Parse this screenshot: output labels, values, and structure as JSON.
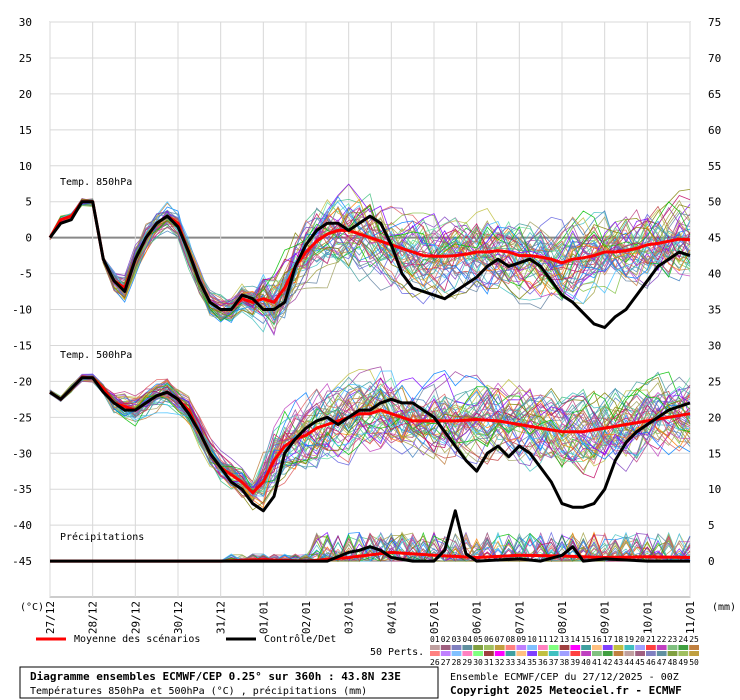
{
  "chart_data": {
    "type": "line",
    "left_axis": {
      "unit_label": "(°C)",
      "ticks": [
        30,
        25,
        20,
        15,
        10,
        5,
        0,
        -5,
        -10,
        -15,
        -20,
        -25,
        -30,
        -35,
        -40,
        -45
      ],
      "ylim": [
        -50,
        30
      ]
    },
    "right_axis": {
      "unit_label": "(mm)",
      "ticks": [
        75,
        70,
        65,
        60,
        55,
        50,
        45,
        40,
        35,
        30,
        25,
        20,
        15,
        10,
        5,
        0
      ]
    },
    "x_labels": [
      "27/12",
      "28/12",
      "29/12",
      "30/12",
      "31/12",
      "01/01",
      "02/01",
      "03/01",
      "04/01",
      "05/01",
      "06/01",
      "07/01",
      "08/01",
      "09/01",
      "10/01",
      "11/01"
    ],
    "panel_labels": {
      "t850": "Temp. 850hPa",
      "t500": "Temp. 500hPa",
      "precip": "Précipitations"
    },
    "series": [
      {
        "name": "Moyenne des scénarios",
        "color": "#ff0000",
        "t850": [
          [
            0,
            0
          ],
          [
            0.25,
            2.5
          ],
          [
            0.5,
            3
          ],
          [
            0.75,
            5
          ],
          [
            1,
            5
          ],
          [
            1.25,
            -3
          ],
          [
            1.5,
            -6
          ],
          [
            1.75,
            -7
          ],
          [
            2,
            -3
          ],
          [
            2.25,
            0
          ],
          [
            2.5,
            2
          ],
          [
            2.75,
            3
          ],
          [
            3,
            2
          ],
          [
            3.25,
            -2
          ],
          [
            3.5,
            -6
          ],
          [
            3.75,
            -9
          ],
          [
            4,
            -10
          ],
          [
            4.25,
            -10
          ],
          [
            4.5,
            -8.5
          ],
          [
            4.75,
            -9
          ],
          [
            5,
            -8.5
          ],
          [
            5.25,
            -9
          ],
          [
            5.5,
            -7
          ],
          [
            5.75,
            -4
          ],
          [
            6,
            -2
          ],
          [
            6.25,
            -0.5
          ],
          [
            6.5,
            0.5
          ],
          [
            6.75,
            1
          ],
          [
            7,
            1
          ],
          [
            7.25,
            0.5
          ],
          [
            7.5,
            0
          ],
          [
            7.75,
            -0.5
          ],
          [
            8,
            -1
          ],
          [
            8.25,
            -1.5
          ],
          [
            8.5,
            -2
          ],
          [
            8.75,
            -2.5
          ],
          [
            9,
            -2.6
          ],
          [
            9.25,
            -2.6
          ],
          [
            9.5,
            -2.5
          ],
          [
            9.75,
            -2.3
          ],
          [
            10,
            -2
          ],
          [
            10.25,
            -2
          ],
          [
            10.5,
            -1.8
          ],
          [
            10.75,
            -2
          ],
          [
            11,
            -2.5
          ],
          [
            11.25,
            -2.5
          ],
          [
            11.5,
            -2.7
          ],
          [
            11.75,
            -3
          ],
          [
            12,
            -3.5
          ],
          [
            12.25,
            -3
          ],
          [
            12.5,
            -2.8
          ],
          [
            12.75,
            -2.5
          ],
          [
            13,
            -2
          ],
          [
            13.25,
            -2
          ],
          [
            13.5,
            -1.8
          ],
          [
            13.75,
            -1.5
          ],
          [
            14,
            -1
          ],
          [
            14.25,
            -0.8
          ],
          [
            14.5,
            -0.5
          ],
          [
            14.75,
            -0.2
          ],
          [
            15,
            -0.3
          ]
        ],
        "t500": [
          [
            0,
            -21.5
          ],
          [
            0.25,
            -22.5
          ],
          [
            0.5,
            -21
          ],
          [
            0.75,
            -19.5
          ],
          [
            1,
            -19.5
          ],
          [
            1.25,
            -21
          ],
          [
            1.5,
            -23
          ],
          [
            1.75,
            -23.5
          ],
          [
            2,
            -24
          ],
          [
            2.25,
            -23
          ],
          [
            2.5,
            -22
          ],
          [
            2.75,
            -21.5
          ],
          [
            3,
            -22.5
          ],
          [
            3.25,
            -24
          ],
          [
            3.5,
            -27
          ],
          [
            3.75,
            -30
          ],
          [
            4,
            -32
          ],
          [
            4.25,
            -33
          ],
          [
            4.5,
            -34
          ],
          [
            4.75,
            -35.5
          ],
          [
            5,
            -34
          ],
          [
            5.25,
            -31
          ],
          [
            5.5,
            -29
          ],
          [
            5.75,
            -28
          ],
          [
            6,
            -27.5
          ],
          [
            6.25,
            -26.5
          ],
          [
            6.5,
            -26
          ],
          [
            6.75,
            -25.5
          ],
          [
            7,
            -25
          ],
          [
            7.25,
            -24.5
          ],
          [
            7.5,
            -24.5
          ],
          [
            7.75,
            -24
          ],
          [
            8,
            -24.5
          ],
          [
            8.25,
            -25
          ],
          [
            8.5,
            -25.5
          ],
          [
            8.75,
            -25.5
          ],
          [
            9,
            -25.5
          ],
          [
            9.5,
            -25.5
          ],
          [
            10,
            -25.3
          ],
          [
            10.5,
            -25.5
          ],
          [
            11,
            -26
          ],
          [
            11.5,
            -26.5
          ],
          [
            12,
            -27
          ],
          [
            12.5,
            -27
          ],
          [
            13,
            -26.5
          ],
          [
            13.5,
            -26
          ],
          [
            14,
            -25.5
          ],
          [
            14.5,
            -25
          ],
          [
            15,
            -24.5
          ]
        ],
        "precip": [
          [
            0,
            0
          ],
          [
            4,
            0
          ],
          [
            5,
            0.2
          ],
          [
            6,
            0
          ],
          [
            7,
            0.5
          ],
          [
            8,
            1.2
          ],
          [
            9,
            0.8
          ],
          [
            10,
            0.5
          ],
          [
            11,
            0.8
          ],
          [
            12,
            0.7
          ],
          [
            13,
            0.5
          ],
          [
            14,
            0.6
          ],
          [
            15,
            0.5
          ]
        ]
      },
      {
        "name": "Contrôle/Det",
        "color": "#000000",
        "t850": [
          [
            0,
            0
          ],
          [
            0.25,
            2
          ],
          [
            0.5,
            2.5
          ],
          [
            0.75,
            5
          ],
          [
            1,
            5
          ],
          [
            1.25,
            -3
          ],
          [
            1.5,
            -6
          ],
          [
            1.75,
            -7.5
          ],
          [
            2,
            -3
          ],
          [
            2.25,
            0
          ],
          [
            2.5,
            2
          ],
          [
            2.75,
            3
          ],
          [
            3,
            1.5
          ],
          [
            3.25,
            -2
          ],
          [
            3.5,
            -6
          ],
          [
            3.75,
            -9
          ],
          [
            4,
            -10
          ],
          [
            4.25,
            -10
          ],
          [
            4.5,
            -8
          ],
          [
            4.75,
            -8.5
          ],
          [
            5,
            -10
          ],
          [
            5.25,
            -10
          ],
          [
            5.5,
            -9
          ],
          [
            5.75,
            -4
          ],
          [
            6,
            -1
          ],
          [
            6.25,
            1
          ],
          [
            6.5,
            2
          ],
          [
            6.75,
            2
          ],
          [
            7,
            1
          ],
          [
            7.25,
            2
          ],
          [
            7.5,
            3
          ],
          [
            7.75,
            2
          ],
          [
            8,
            -1
          ],
          [
            8.25,
            -5
          ],
          [
            8.5,
            -7
          ],
          [
            8.75,
            -7.5
          ],
          [
            9,
            -8
          ],
          [
            9.25,
            -8.5
          ],
          [
            9.5,
            -7.5
          ],
          [
            9.75,
            -6.5
          ],
          [
            10,
            -5.5
          ],
          [
            10.25,
            -4
          ],
          [
            10.5,
            -3
          ],
          [
            10.75,
            -4
          ],
          [
            11,
            -3.5
          ],
          [
            11.25,
            -3
          ],
          [
            11.5,
            -4
          ],
          [
            11.75,
            -6
          ],
          [
            12,
            -8
          ],
          [
            12.25,
            -9
          ],
          [
            12.5,
            -10.5
          ],
          [
            12.75,
            -12
          ],
          [
            13,
            -12.5
          ],
          [
            13.25,
            -11
          ],
          [
            13.5,
            -10
          ],
          [
            13.75,
            -8
          ],
          [
            14,
            -6
          ],
          [
            14.25,
            -4
          ],
          [
            14.5,
            -3
          ],
          [
            14.75,
            -2
          ],
          [
            15,
            -2.5
          ]
        ],
        "t500": [
          [
            0,
            -21.5
          ],
          [
            0.25,
            -22.5
          ],
          [
            0.5,
            -21
          ],
          [
            0.75,
            -19.5
          ],
          [
            1,
            -19.5
          ],
          [
            1.25,
            -21.5
          ],
          [
            1.5,
            -23
          ],
          [
            1.75,
            -24
          ],
          [
            2,
            -24
          ],
          [
            2.25,
            -23
          ],
          [
            2.5,
            -22
          ],
          [
            2.75,
            -21.5
          ],
          [
            3,
            -22.5
          ],
          [
            3.25,
            -24.5
          ],
          [
            3.5,
            -27
          ],
          [
            3.75,
            -30
          ],
          [
            4,
            -32
          ],
          [
            4.25,
            -34
          ],
          [
            4.5,
            -35
          ],
          [
            4.75,
            -37
          ],
          [
            5,
            -38
          ],
          [
            5.25,
            -36
          ],
          [
            5.5,
            -30
          ],
          [
            5.75,
            -28
          ],
          [
            6,
            -26.5
          ],
          [
            6.25,
            -25.5
          ],
          [
            6.5,
            -25
          ],
          [
            6.75,
            -26
          ],
          [
            7,
            -25
          ],
          [
            7.25,
            -24
          ],
          [
            7.5,
            -24
          ],
          [
            7.75,
            -23
          ],
          [
            8,
            -22.5
          ],
          [
            8.25,
            -23
          ],
          [
            8.5,
            -23
          ],
          [
            8.75,
            -24
          ],
          [
            9,
            -25
          ],
          [
            9.25,
            -27
          ],
          [
            9.5,
            -29
          ],
          [
            9.75,
            -31
          ],
          [
            10,
            -32.5
          ],
          [
            10.25,
            -30
          ],
          [
            10.5,
            -29
          ],
          [
            10.75,
            -30.5
          ],
          [
            11,
            -29
          ],
          [
            11.25,
            -30
          ],
          [
            11.5,
            -32
          ],
          [
            11.75,
            -34
          ],
          [
            12,
            -37
          ],
          [
            12.25,
            -37.5
          ],
          [
            12.5,
            -37.5
          ],
          [
            12.75,
            -37
          ],
          [
            13,
            -35
          ],
          [
            13.25,
            -31
          ],
          [
            13.5,
            -28.5
          ],
          [
            13.75,
            -27
          ],
          [
            14,
            -26
          ],
          [
            14.25,
            -25
          ],
          [
            14.5,
            -24
          ],
          [
            14.75,
            -23.5
          ],
          [
            15,
            -23
          ]
        ],
        "precip": [
          [
            0,
            0
          ],
          [
            6.5,
            0
          ],
          [
            7,
            1.2
          ],
          [
            7.25,
            1.5
          ],
          [
            7.5,
            2
          ],
          [
            7.75,
            1.5
          ],
          [
            8,
            0.5
          ],
          [
            8.5,
            0
          ],
          [
            9,
            0
          ],
          [
            9.25,
            1.5
          ],
          [
            9.5,
            7
          ],
          [
            9.75,
            1
          ],
          [
            10,
            0
          ],
          [
            11,
            0.3
          ],
          [
            11.5,
            0
          ],
          [
            12,
            0.8
          ],
          [
            12.25,
            2
          ],
          [
            12.5,
            0
          ],
          [
            13,
            0.3
          ],
          [
            14,
            0
          ],
          [
            15,
            0
          ]
        ]
      }
    ],
    "ensemble_members": 50
  },
  "legend": {
    "mean_label": "Moyenne des scénarios",
    "control_label": "Contrôle/Det",
    "perts_label": "50 Perts.",
    "perts_row1": [
      "01",
      "02",
      "03",
      "04",
      "05",
      "06",
      "07",
      "08",
      "09",
      "10",
      "11",
      "12",
      "13",
      "14",
      "15",
      "16",
      "17",
      "18",
      "19",
      "20",
      "21",
      "22",
      "23",
      "24",
      "25"
    ],
    "perts_row2": [
      "26",
      "27",
      "28",
      "29",
      "30",
      "31",
      "32",
      "33",
      "34",
      "35",
      "36",
      "37",
      "38",
      "39",
      "40",
      "41",
      "42",
      "43",
      "44",
      "45",
      "46",
      "47",
      "48",
      "49",
      "50"
    ],
    "swatch_colors": [
      "#c0a0a0",
      "#a06080",
      "#8080c0",
      "#6090a0",
      "#80a040",
      "#a0c060",
      "#c0a040",
      "#ff8080",
      "#c080ff",
      "#80c0ff",
      "#ff80c0",
      "#80ff80",
      "#a04040",
      "#ff00ff",
      "#40a0a0",
      "#ffc080",
      "#8040ff",
      "#c0c040",
      "#40c0c0",
      "#a0a0ff",
      "#ff4040",
      "#c040c0",
      "#80c080",
      "#40a040",
      "#c08040"
    ]
  },
  "footer": {
    "title_line1": "Diagramme ensembles ECMWF/CEP 0.25° sur 360h : 43.8N 23E",
    "title_line2": "Températures 850hPa et 500hPa (°C) , précipitations (mm)",
    "run_line": "Ensemble ECMWF/CEP du 27/12/2025 - 00Z",
    "copyright": "Copyright 2025 Meteociel.fr - ECMWF"
  }
}
